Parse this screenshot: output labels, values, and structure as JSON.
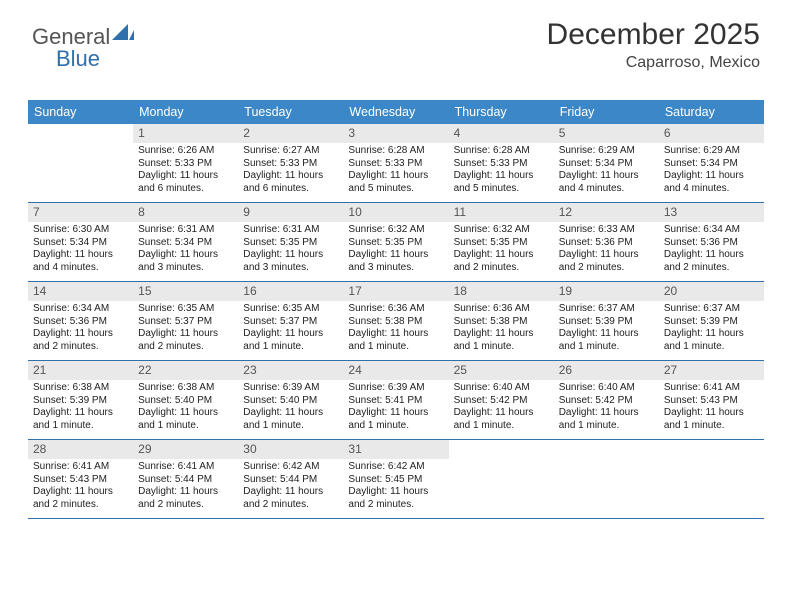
{
  "brand": {
    "part1": "General",
    "part2": "Blue"
  },
  "title": "December 2025",
  "location": "Caparroso, Mexico",
  "header_bg": "#3b87c8",
  "rule_color": "#2f6fab",
  "daynum_bg": "#e9e9e9",
  "day_names": [
    "Sunday",
    "Monday",
    "Tuesday",
    "Wednesday",
    "Thursday",
    "Friday",
    "Saturday"
  ],
  "weeks": [
    [
      {
        "n": ""
      },
      {
        "n": "1",
        "sr": "Sunrise: 6:26 AM",
        "ss": "Sunset: 5:33 PM",
        "dl": "Daylight: 11 hours and 6 minutes."
      },
      {
        "n": "2",
        "sr": "Sunrise: 6:27 AM",
        "ss": "Sunset: 5:33 PM",
        "dl": "Daylight: 11 hours and 6 minutes."
      },
      {
        "n": "3",
        "sr": "Sunrise: 6:28 AM",
        "ss": "Sunset: 5:33 PM",
        "dl": "Daylight: 11 hours and 5 minutes."
      },
      {
        "n": "4",
        "sr": "Sunrise: 6:28 AM",
        "ss": "Sunset: 5:33 PM",
        "dl": "Daylight: 11 hours and 5 minutes."
      },
      {
        "n": "5",
        "sr": "Sunrise: 6:29 AM",
        "ss": "Sunset: 5:34 PM",
        "dl": "Daylight: 11 hours and 4 minutes."
      },
      {
        "n": "6",
        "sr": "Sunrise: 6:29 AM",
        "ss": "Sunset: 5:34 PM",
        "dl": "Daylight: 11 hours and 4 minutes."
      }
    ],
    [
      {
        "n": "7",
        "sr": "Sunrise: 6:30 AM",
        "ss": "Sunset: 5:34 PM",
        "dl": "Daylight: 11 hours and 4 minutes."
      },
      {
        "n": "8",
        "sr": "Sunrise: 6:31 AM",
        "ss": "Sunset: 5:34 PM",
        "dl": "Daylight: 11 hours and 3 minutes."
      },
      {
        "n": "9",
        "sr": "Sunrise: 6:31 AM",
        "ss": "Sunset: 5:35 PM",
        "dl": "Daylight: 11 hours and 3 minutes."
      },
      {
        "n": "10",
        "sr": "Sunrise: 6:32 AM",
        "ss": "Sunset: 5:35 PM",
        "dl": "Daylight: 11 hours and 3 minutes."
      },
      {
        "n": "11",
        "sr": "Sunrise: 6:32 AM",
        "ss": "Sunset: 5:35 PM",
        "dl": "Daylight: 11 hours and 2 minutes."
      },
      {
        "n": "12",
        "sr": "Sunrise: 6:33 AM",
        "ss": "Sunset: 5:36 PM",
        "dl": "Daylight: 11 hours and 2 minutes."
      },
      {
        "n": "13",
        "sr": "Sunrise: 6:34 AM",
        "ss": "Sunset: 5:36 PM",
        "dl": "Daylight: 11 hours and 2 minutes."
      }
    ],
    [
      {
        "n": "14",
        "sr": "Sunrise: 6:34 AM",
        "ss": "Sunset: 5:36 PM",
        "dl": "Daylight: 11 hours and 2 minutes."
      },
      {
        "n": "15",
        "sr": "Sunrise: 6:35 AM",
        "ss": "Sunset: 5:37 PM",
        "dl": "Daylight: 11 hours and 2 minutes."
      },
      {
        "n": "16",
        "sr": "Sunrise: 6:35 AM",
        "ss": "Sunset: 5:37 PM",
        "dl": "Daylight: 11 hours and 1 minute."
      },
      {
        "n": "17",
        "sr": "Sunrise: 6:36 AM",
        "ss": "Sunset: 5:38 PM",
        "dl": "Daylight: 11 hours and 1 minute."
      },
      {
        "n": "18",
        "sr": "Sunrise: 6:36 AM",
        "ss": "Sunset: 5:38 PM",
        "dl": "Daylight: 11 hours and 1 minute."
      },
      {
        "n": "19",
        "sr": "Sunrise: 6:37 AM",
        "ss": "Sunset: 5:39 PM",
        "dl": "Daylight: 11 hours and 1 minute."
      },
      {
        "n": "20",
        "sr": "Sunrise: 6:37 AM",
        "ss": "Sunset: 5:39 PM",
        "dl": "Daylight: 11 hours and 1 minute."
      }
    ],
    [
      {
        "n": "21",
        "sr": "Sunrise: 6:38 AM",
        "ss": "Sunset: 5:39 PM",
        "dl": "Daylight: 11 hours and 1 minute."
      },
      {
        "n": "22",
        "sr": "Sunrise: 6:38 AM",
        "ss": "Sunset: 5:40 PM",
        "dl": "Daylight: 11 hours and 1 minute."
      },
      {
        "n": "23",
        "sr": "Sunrise: 6:39 AM",
        "ss": "Sunset: 5:40 PM",
        "dl": "Daylight: 11 hours and 1 minute."
      },
      {
        "n": "24",
        "sr": "Sunrise: 6:39 AM",
        "ss": "Sunset: 5:41 PM",
        "dl": "Daylight: 11 hours and 1 minute."
      },
      {
        "n": "25",
        "sr": "Sunrise: 6:40 AM",
        "ss": "Sunset: 5:42 PM",
        "dl": "Daylight: 11 hours and 1 minute."
      },
      {
        "n": "26",
        "sr": "Sunrise: 6:40 AM",
        "ss": "Sunset: 5:42 PM",
        "dl": "Daylight: 11 hours and 1 minute."
      },
      {
        "n": "27",
        "sr": "Sunrise: 6:41 AM",
        "ss": "Sunset: 5:43 PM",
        "dl": "Daylight: 11 hours and 1 minute."
      }
    ],
    [
      {
        "n": "28",
        "sr": "Sunrise: 6:41 AM",
        "ss": "Sunset: 5:43 PM",
        "dl": "Daylight: 11 hours and 2 minutes."
      },
      {
        "n": "29",
        "sr": "Sunrise: 6:41 AM",
        "ss": "Sunset: 5:44 PM",
        "dl": "Daylight: 11 hours and 2 minutes."
      },
      {
        "n": "30",
        "sr": "Sunrise: 6:42 AM",
        "ss": "Sunset: 5:44 PM",
        "dl": "Daylight: 11 hours and 2 minutes."
      },
      {
        "n": "31",
        "sr": "Sunrise: 6:42 AM",
        "ss": "Sunset: 5:45 PM",
        "dl": "Daylight: 11 hours and 2 minutes."
      },
      {
        "n": ""
      },
      {
        "n": ""
      },
      {
        "n": ""
      }
    ]
  ]
}
